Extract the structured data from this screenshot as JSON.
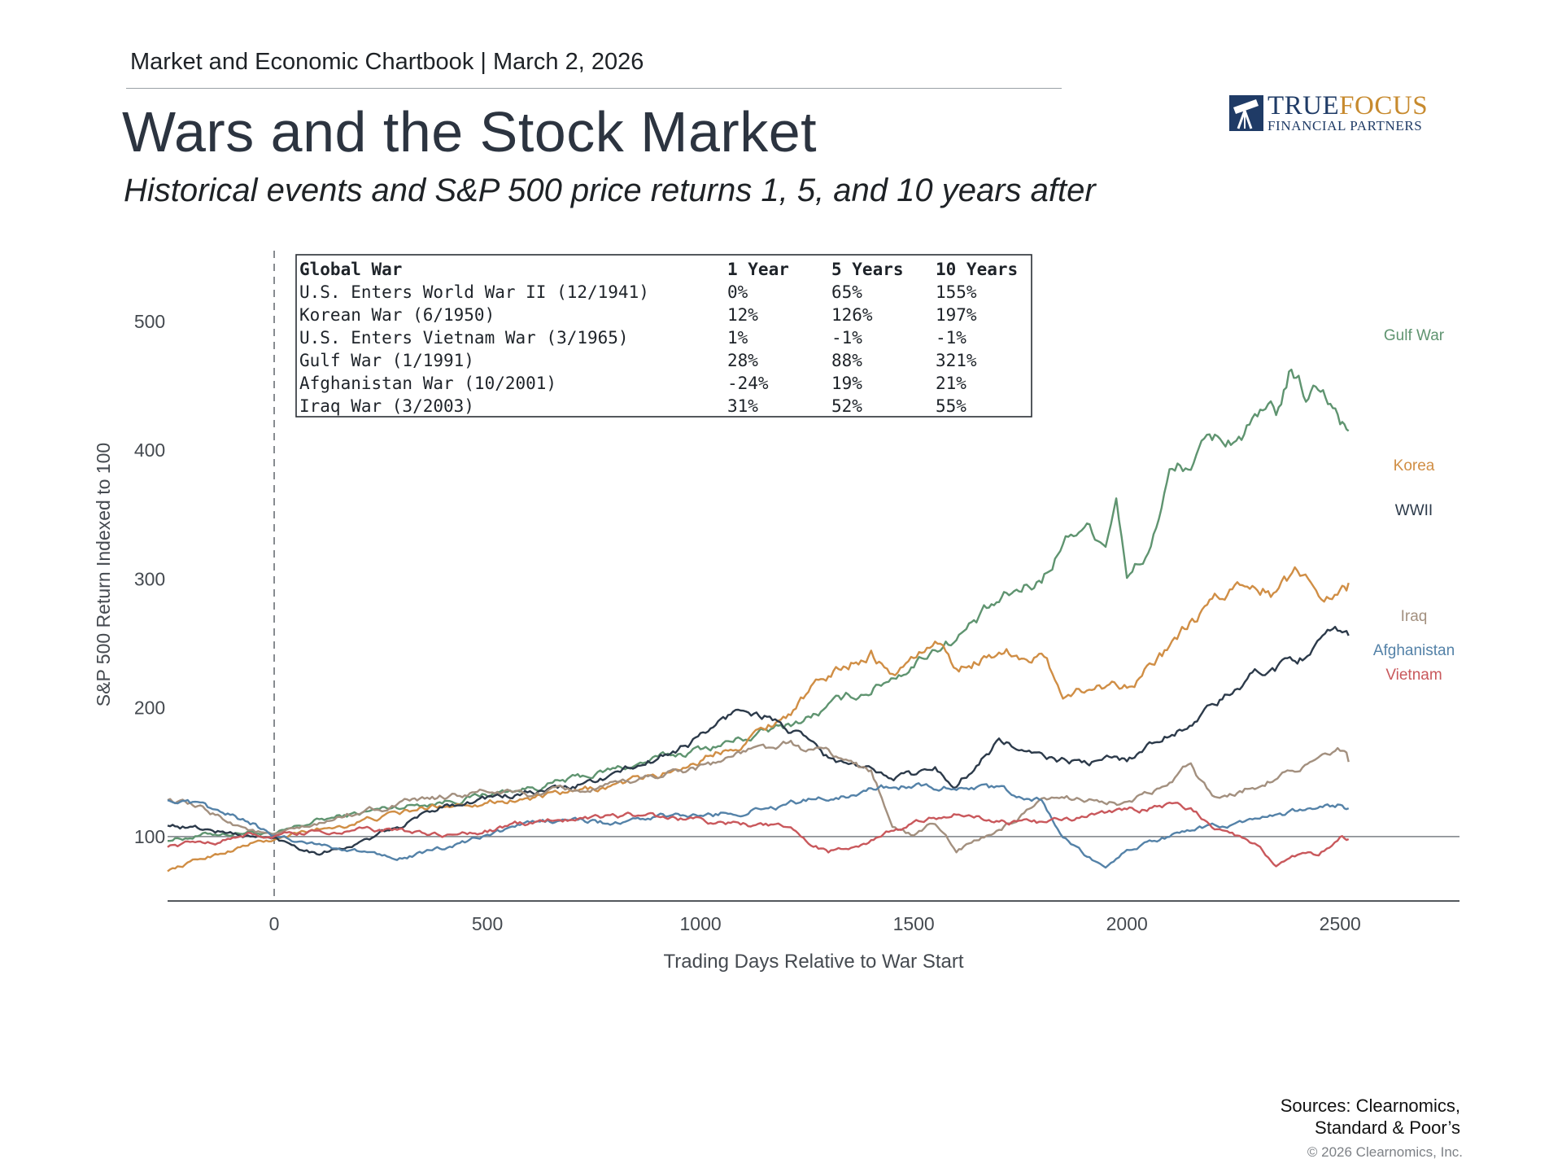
{
  "header": {
    "kicker": "Market and Economic Chartbook | March 2, 2026",
    "title": "Wars and the Stock Market",
    "subtitle": "Historical events and S&P 500 price returns 1, 5, and 10 years after"
  },
  "logo": {
    "name_part1": "TRUE",
    "name_part2": "FOCUS",
    "tagline": "FINANCIAL PARTNERS",
    "icon": "telescope-icon"
  },
  "footer": {
    "sources_line1": "Sources: Clearnomics,",
    "sources_line2": "Standard & Poor’s",
    "copyright": "© 2026 Clearnomics, Inc."
  },
  "table": {
    "headers": [
      "Global War",
      "1 Year",
      "5 Years",
      "10 Years"
    ],
    "rows": [
      [
        "U.S. Enters World War II (12/1941)",
        "0%",
        "65%",
        "155%"
      ],
      [
        "Korean War (6/1950)",
        "12%",
        "126%",
        "197%"
      ],
      [
        "U.S. Enters Vietnam War (3/1965)",
        "1%",
        "-1%",
        "-1%"
      ],
      [
        "Gulf War (1/1991)",
        "28%",
        "88%",
        "321%"
      ],
      [
        "Afghanistan War (10/2001)",
        "-24%",
        "19%",
        "21%"
      ],
      [
        "Iraq War (3/2003)",
        "31%",
        "52%",
        "55%"
      ]
    ]
  },
  "colors": {
    "gulf_war": "#5f9470",
    "korea": "#d08e45",
    "wwii": "#2c3a4a",
    "iraq": "#a3907f",
    "afghanistan": "#5482a8",
    "vietnam": "#c9585c",
    "axis_text": "#454a50"
  },
  "chart_data": {
    "type": "line",
    "title": "",
    "xlabel": "Trading Days Relative to War Start",
    "ylabel": "S&P 500 Return Indexed to 100",
    "xlim": [
      -250,
      2780
    ],
    "ylim": [
      50,
      560
    ],
    "x_ticks": [
      0,
      500,
      1000,
      1500,
      2000,
      2500
    ],
    "y_ticks": [
      100,
      200,
      300,
      400,
      500
    ],
    "reference_lines": {
      "y": 100,
      "x_dashed": 0
    },
    "series": [
      {
        "name": "Gulf War",
        "color_key": "gulf_war",
        "points": [
          [
            -250,
            98
          ],
          [
            -150,
            102
          ],
          [
            -50,
            104
          ],
          [
            0,
            100
          ],
          [
            100,
            112
          ],
          [
            200,
            118
          ],
          [
            300,
            124
          ],
          [
            400,
            128
          ],
          [
            500,
            133
          ],
          [
            600,
            138
          ],
          [
            700,
            144
          ],
          [
            800,
            152
          ],
          [
            900,
            160
          ],
          [
            1000,
            168
          ],
          [
            1100,
            176
          ],
          [
            1200,
            185
          ],
          [
            1300,
            200
          ],
          [
            1400,
            215
          ],
          [
            1500,
            235
          ],
          [
            1550,
            248
          ],
          [
            1600,
            255
          ],
          [
            1700,
            280
          ],
          [
            1800,
            300
          ],
          [
            1850,
            330
          ],
          [
            1900,
            345
          ],
          [
            1950,
            330
          ],
          [
            1975,
            370
          ],
          [
            2000,
            300
          ],
          [
            2050,
            320
          ],
          [
            2100,
            380
          ],
          [
            2150,
            390
          ],
          [
            2200,
            405
          ],
          [
            2250,
            410
          ],
          [
            2300,
            420
          ],
          [
            2350,
            425
          ],
          [
            2380,
            455
          ],
          [
            2420,
            440
          ],
          [
            2460,
            450
          ],
          [
            2500,
            430
          ],
          [
            2520,
            415
          ]
        ]
      },
      {
        "name": "Korea",
        "color_key": "korea",
        "points": [
          [
            -250,
            74
          ],
          [
            -150,
            85
          ],
          [
            -50,
            95
          ],
          [
            0,
            97
          ],
          [
            100,
            105
          ],
          [
            200,
            112
          ],
          [
            300,
            118
          ],
          [
            400,
            125
          ],
          [
            500,
            128
          ],
          [
            600,
            130
          ],
          [
            700,
            133
          ],
          [
            800,
            140
          ],
          [
            900,
            147
          ],
          [
            1000,
            160
          ],
          [
            1100,
            175
          ],
          [
            1200,
            195
          ],
          [
            1300,
            225
          ],
          [
            1400,
            245
          ],
          [
            1450,
            225
          ],
          [
            1500,
            240
          ],
          [
            1550,
            250
          ],
          [
            1600,
            230
          ],
          [
            1700,
            245
          ],
          [
            1800,
            240
          ],
          [
            1850,
            212
          ],
          [
            1900,
            215
          ],
          [
            2000,
            220
          ],
          [
            2100,
            245
          ],
          [
            2200,
            280
          ],
          [
            2300,
            302
          ],
          [
            2350,
            290
          ],
          [
            2400,
            305
          ],
          [
            2450,
            290
          ],
          [
            2500,
            295
          ],
          [
            2520,
            297
          ]
        ]
      },
      {
        "name": "WWII",
        "color_key": "wwii",
        "points": [
          [
            -250,
            110
          ],
          [
            -150,
            105
          ],
          [
            -50,
            100
          ],
          [
            0,
            98
          ],
          [
            100,
            88
          ],
          [
            200,
            95
          ],
          [
            300,
            108
          ],
          [
            400,
            125
          ],
          [
            500,
            130
          ],
          [
            600,
            133
          ],
          [
            700,
            138
          ],
          [
            800,
            148
          ],
          [
            900,
            160
          ],
          [
            1000,
            178
          ],
          [
            1100,
            200
          ],
          [
            1150,
            195
          ],
          [
            1200,
            185
          ],
          [
            1300,
            160
          ],
          [
            1400,
            150
          ],
          [
            1500,
            148
          ],
          [
            1550,
            152
          ],
          [
            1600,
            140
          ],
          [
            1700,
            175
          ],
          [
            1800,
            160
          ],
          [
            1900,
            157
          ],
          [
            2000,
            160
          ],
          [
            2100,
            180
          ],
          [
            2200,
            200
          ],
          [
            2300,
            225
          ],
          [
            2400,
            240
          ],
          [
            2500,
            255
          ],
          [
            2520,
            256
          ]
        ]
      },
      {
        "name": "Iraq",
        "color_key": "iraq",
        "points": [
          [
            -250,
            130
          ],
          [
            -150,
            118
          ],
          [
            -50,
            105
          ],
          [
            0,
            100
          ],
          [
            100,
            108
          ],
          [
            200,
            120
          ],
          [
            300,
            125
          ],
          [
            400,
            130
          ],
          [
            500,
            135
          ],
          [
            600,
            132
          ],
          [
            700,
            135
          ],
          [
            800,
            138
          ],
          [
            900,
            148
          ],
          [
            1000,
            155
          ],
          [
            1100,
            165
          ],
          [
            1200,
            170
          ],
          [
            1300,
            165
          ],
          [
            1400,
            150
          ],
          [
            1450,
            110
          ],
          [
            1500,
            100
          ],
          [
            1550,
            110
          ],
          [
            1600,
            90
          ],
          [
            1700,
            105
          ],
          [
            1800,
            125
          ],
          [
            1900,
            130
          ],
          [
            2000,
            125
          ],
          [
            2100,
            140
          ],
          [
            2150,
            155
          ],
          [
            2200,
            130
          ],
          [
            2300,
            140
          ],
          [
            2400,
            155
          ],
          [
            2500,
            165
          ],
          [
            2520,
            158
          ]
        ]
      },
      {
        "name": "Afghanistan",
        "color_key": "afghanistan",
        "points": [
          [
            -250,
            130
          ],
          [
            -150,
            120
          ],
          [
            -50,
            110
          ],
          [
            0,
            100
          ],
          [
            100,
            95
          ],
          [
            200,
            88
          ],
          [
            300,
            85
          ],
          [
            400,
            90
          ],
          [
            500,
            100
          ],
          [
            600,
            110
          ],
          [
            700,
            113
          ],
          [
            800,
            110
          ],
          [
            900,
            115
          ],
          [
            1000,
            115
          ],
          [
            1100,
            120
          ],
          [
            1200,
            125
          ],
          [
            1300,
            130
          ],
          [
            1400,
            138
          ],
          [
            1500,
            140
          ],
          [
            1600,
            140
          ],
          [
            1700,
            135
          ],
          [
            1800,
            128
          ],
          [
            1850,
            100
          ],
          [
            1900,
            85
          ],
          [
            1950,
            75
          ],
          [
            2000,
            90
          ],
          [
            2100,
            100
          ],
          [
            2200,
            108
          ],
          [
            2300,
            110
          ],
          [
            2400,
            118
          ],
          [
            2500,
            124
          ],
          [
            2520,
            122
          ]
        ]
      },
      {
        "name": "Vietnam",
        "color_key": "vietnam",
        "points": [
          [
            -250,
            93
          ],
          [
            -150,
            96
          ],
          [
            -50,
            102
          ],
          [
            0,
            100
          ],
          [
            100,
            103
          ],
          [
            200,
            105
          ],
          [
            300,
            104
          ],
          [
            400,
            100
          ],
          [
            500,
            105
          ],
          [
            600,
            110
          ],
          [
            700,
            115
          ],
          [
            800,
            117
          ],
          [
            900,
            115
          ],
          [
            1000,
            112
          ],
          [
            1100,
            110
          ],
          [
            1200,
            106
          ],
          [
            1300,
            88
          ],
          [
            1400,
            98
          ],
          [
            1500,
            110
          ],
          [
            1600,
            118
          ],
          [
            1700,
            112
          ],
          [
            1800,
            110
          ],
          [
            1900,
            115
          ],
          [
            2000,
            120
          ],
          [
            2100,
            125
          ],
          [
            2150,
            122
          ],
          [
            2200,
            108
          ],
          [
            2300,
            95
          ],
          [
            2350,
            78
          ],
          [
            2400,
            85
          ],
          [
            2450,
            85
          ],
          [
            2500,
            100
          ],
          [
            2520,
            98
          ]
        ]
      }
    ]
  }
}
